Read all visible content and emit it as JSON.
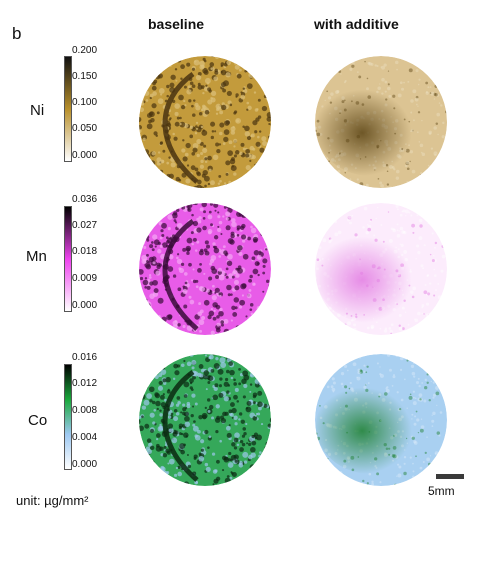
{
  "panel_label": "b",
  "columns": [
    "baseline",
    "with additive"
  ],
  "elements": [
    {
      "name": "Ni",
      "colors": [
        "#ffffff",
        "#b8902b",
        "#111111"
      ],
      "ticks": [
        "0.200",
        "0.150",
        "0.100",
        "0.050",
        "0.000"
      ],
      "baseline_colors": {
        "bg": "#c39b3c",
        "light": "#dcc07a",
        "dark": "#4a3410"
      },
      "additive_colors": {
        "bg": "#dcc493",
        "light": "#ece0c2",
        "dark": "#5b4414"
      }
    },
    {
      "name": "Mn",
      "colors": [
        "#ffffff",
        "#ee44ee",
        "#000000"
      ],
      "ticks": [
        "0.036",
        "0.027",
        "0.018",
        "0.009",
        "0.000"
      ],
      "baseline_colors": {
        "bg": "#e85ce8",
        "light": "#f5a8f5",
        "dark": "#3a0c3a"
      },
      "additive_colors": {
        "bg": "#fcecfc",
        "light": "#ffffff",
        "dark": "#e27be2"
      }
    },
    {
      "name": "Co",
      "colors": [
        "#ffffff",
        "#9ec9f2",
        "#1aa83c",
        "#000000"
      ],
      "ticks": [
        "0.016",
        "0.012",
        "0.008",
        "0.004",
        "0.000"
      ],
      "baseline_colors": {
        "bg": "#35a85a",
        "light": "#9dc8ea",
        "dark": "#0b2a12"
      },
      "additive_colors": {
        "bg": "#a9d0f1",
        "light": "#dbeafa",
        "dark": "#1b7f2d"
      }
    }
  ],
  "unit_label": "unit: µg/mm²",
  "scale_label": "5mm"
}
